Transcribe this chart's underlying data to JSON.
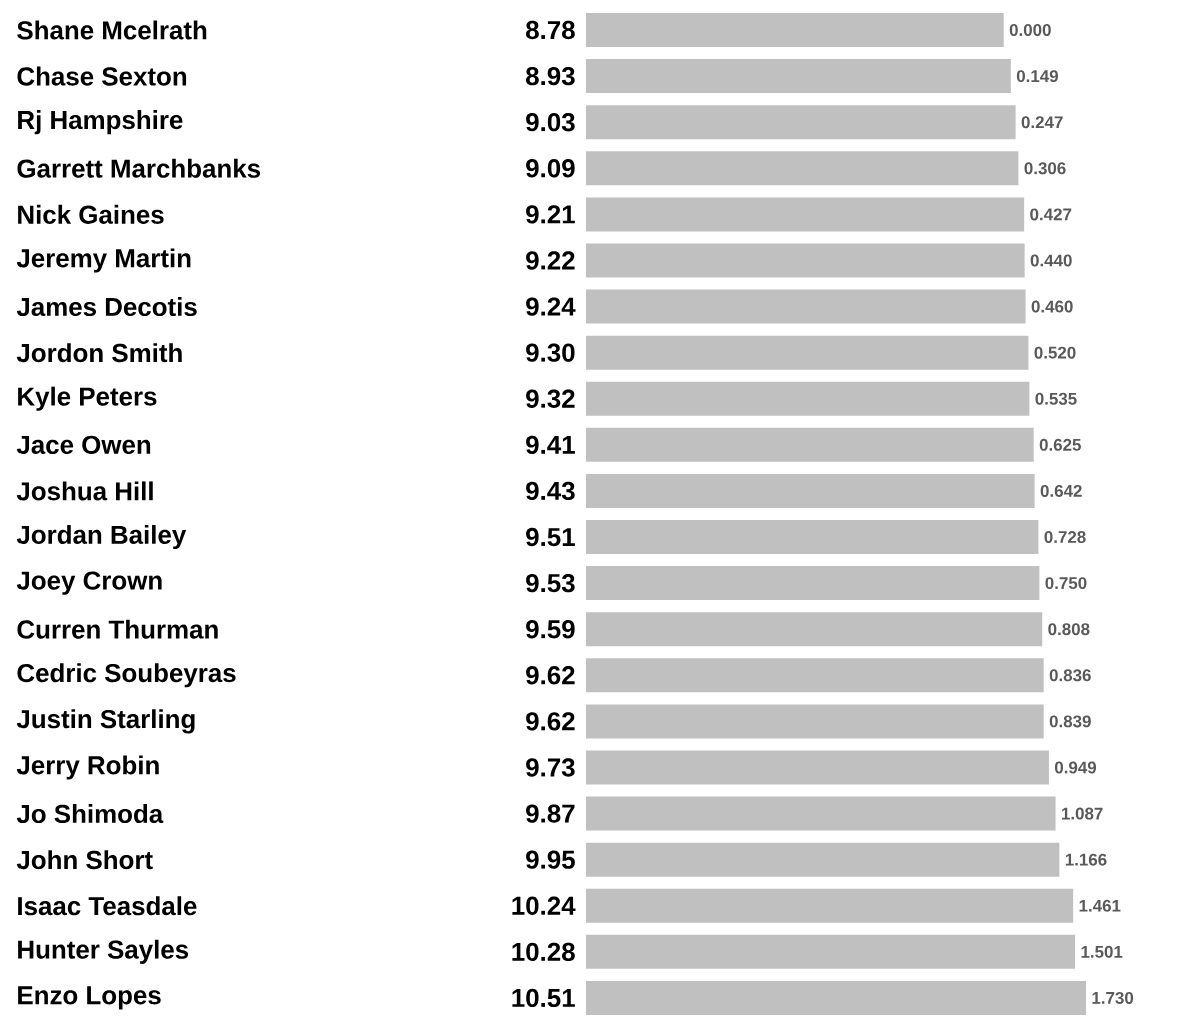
{
  "chart_data": {
    "type": "bar",
    "orientation": "horizontal",
    "color": "#c0c0c0",
    "value_labels": [
      "8.78",
      "8.93",
      "9.03",
      "9.09",
      "9.21",
      "9.22",
      "9.24",
      "9.30",
      "9.32",
      "9.41",
      "9.43",
      "9.51",
      "9.53",
      "9.59",
      "9.62",
      "9.62",
      "9.73",
      "9.87",
      "9.95",
      "10.24",
      "10.28",
      "10.51"
    ],
    "categories": [
      "Shane Mcelrath",
      "Chase Sexton",
      "Rj Hampshire",
      "Garrett Marchbanks",
      "Nick Gaines",
      "Jeremy Martin",
      "James Decotis",
      "Jordon Smith",
      "Kyle Peters",
      "Jace Owen",
      "Joshua Hill",
      "Jordan Bailey",
      "Joey Crown",
      "Curren Thurman",
      "Cedric Soubeyras",
      "Justin Starling",
      "Jerry Robin",
      "Jo Shimoda",
      "John Short",
      "Isaac Teasdale",
      "Hunter Sayles",
      "Enzo Lopes"
    ],
    "values": [
      8.78,
      8.93,
      9.03,
      9.09,
      9.21,
      9.22,
      9.24,
      9.3,
      9.32,
      9.41,
      9.43,
      9.51,
      9.53,
      9.59,
      9.62,
      9.62,
      9.73,
      9.87,
      9.95,
      10.24,
      10.28,
      10.51
    ],
    "annotations": [
      {
        "text": "0.000",
        "x": 8.78,
        "y": "Shane Mcelrath"
      },
      {
        "text": "0.149",
        "x": 8.93,
        "y": "Chase Sexton"
      },
      {
        "text": "0.247",
        "x": 9.03,
        "y": "Rj Hampshire"
      },
      {
        "text": "0.306",
        "x": 9.09,
        "y": "Garrett Marchbanks"
      },
      {
        "text": "0.427",
        "x": 9.21,
        "y": "Nick Gaines"
      },
      {
        "text": "0.440",
        "x": 9.22,
        "y": "Jeremy Martin"
      },
      {
        "text": "0.460",
        "x": 9.24,
        "y": "James Decotis"
      },
      {
        "text": "0.520",
        "x": 9.3,
        "y": "Jordon Smith"
      },
      {
        "text": "0.535",
        "x": 9.32,
        "y": "Kyle Peters"
      },
      {
        "text": "0.625",
        "x": 9.41,
        "y": "Jace Owen"
      },
      {
        "text": "0.642",
        "x": 9.43,
        "y": "Joshua Hill"
      },
      {
        "text": "0.728",
        "x": 9.51,
        "y": "Jordan Bailey"
      },
      {
        "text": "0.750",
        "x": 9.53,
        "y": "Joey Crown"
      },
      {
        "text": "0.808",
        "x": 9.59,
        "y": "Curren Thurman"
      },
      {
        "text": "0.836",
        "x": 9.62,
        "y": "Cedric Soubeyras"
      },
      {
        "text": "0.839",
        "x": 9.62,
        "y": "Justin Starling"
      },
      {
        "text": "0.949",
        "x": 9.73,
        "y": "Jerry Robin"
      },
      {
        "text": "1.087",
        "x": 9.87,
        "y": "Jo Shimoda"
      },
      {
        "text": "1.166",
        "x": 9.95,
        "y": "John Short"
      },
      {
        "text": "1.461",
        "x": 10.24,
        "y": "Isaac Teasdale"
      },
      {
        "text": "1.501",
        "x": 10.28,
        "y": "Hunter Sayles"
      },
      {
        "text": "1.730",
        "x": 10.51,
        "y": "Enzo Lopes"
      }
    ]
  }
}
